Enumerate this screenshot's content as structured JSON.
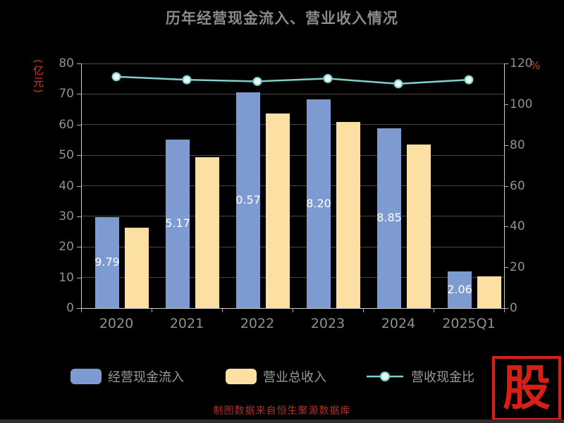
{
  "title": "历年经营现金流入、营业收入情况",
  "caption": "制图数据来自恒生聚源数据库",
  "watermark": {
    "char": "股"
  },
  "colors": {
    "background": "#000000",
    "title_text": "#8a8a8a",
    "axis_text": "#909090",
    "unit_text": "#cf3a2a",
    "caption_text": "#b13127",
    "watermark_red": "#d42015",
    "bar_label_text": "#ffffff",
    "grid_line": "rgba(255,255,255,0.28)"
  },
  "chart_data": {
    "type": "bar+line",
    "title": "历年经营现金流入、营业收入情况",
    "categories": [
      "2020",
      "2021",
      "2022",
      "2023",
      "2024",
      "2025Q1"
    ],
    "left_axis": {
      "unit": "(亿元)",
      "min": 0,
      "max": 80,
      "tick_step": 10
    },
    "right_axis": {
      "unit": "%",
      "min": 0,
      "max": 120,
      "tick_step": 20
    },
    "grid": true,
    "legend_position": "bottom",
    "series": [
      {
        "name": "经营现金流入",
        "type": "bar",
        "axis": "left",
        "color": "#7d9bd1",
        "values": [
          29.79,
          55.17,
          70.57,
          68.2,
          58.85,
          12.06
        ],
        "visible_labels": [
          "9.79",
          "5.17",
          "0.57",
          "8.20",
          "8.85",
          "2.06"
        ]
      },
      {
        "name": "营业总收入",
        "type": "bar",
        "axis": "left",
        "color": "#fbdfa3",
        "values": [
          26.3,
          49.3,
          63.6,
          60.9,
          53.6,
          10.4
        ]
      },
      {
        "name": "营收现金比",
        "type": "line",
        "axis": "right",
        "color": "#7fd0ca",
        "marker_fill": "#e9f7f5",
        "values": [
          113.5,
          112.0,
          111.2,
          112.6,
          110.0,
          112.0
        ]
      }
    ]
  }
}
